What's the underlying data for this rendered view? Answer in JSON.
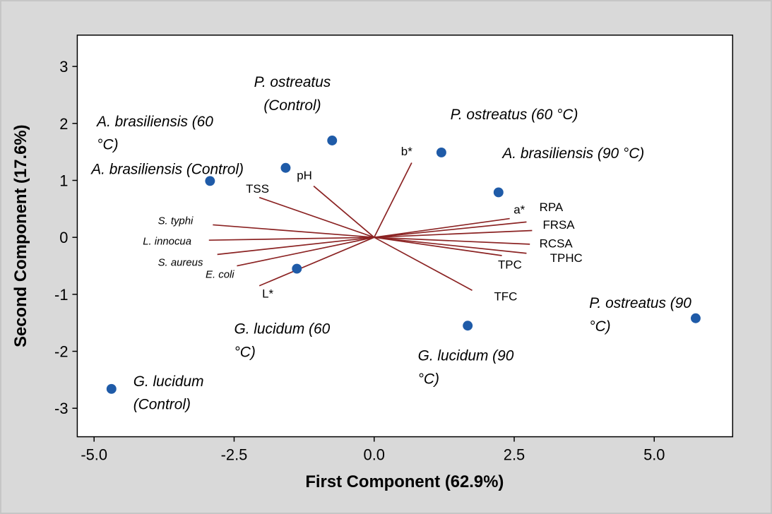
{
  "chart_data": {
    "type": "scatter",
    "variant": "pca_biplot",
    "title": "",
    "xlabel": "First Component (62.9%)",
    "ylabel": "Second Component (17.6%)",
    "xlim": [
      -5.3,
      6.4
    ],
    "ylim": [
      -3.5,
      3.55
    ],
    "grid": false,
    "legend": "none",
    "x_ticks": [
      {
        "value": -5,
        "label": "-5.0"
      },
      {
        "value": -2.5,
        "label": "-2.5"
      },
      {
        "value": 0,
        "label": "0.0"
      },
      {
        "value": 2.5,
        "label": "2.5"
      },
      {
        "value": 5,
        "label": "5.0"
      }
    ],
    "y_ticks": [
      {
        "value": -3,
        "label": "-3"
      },
      {
        "value": -2,
        "label": "-2"
      },
      {
        "value": -1,
        "label": "-1"
      },
      {
        "value": 0,
        "label": "0"
      },
      {
        "value": 1,
        "label": "1"
      },
      {
        "value": 2,
        "label": "2"
      },
      {
        "value": 3,
        "label": "3"
      }
    ],
    "colors": {
      "point": "#1f5ba8",
      "vector": "#8b2323",
      "plot_bg": "#ffffff",
      "page_bg": "#d9d9d9",
      "plot_border": "#000000",
      "text": "#000000"
    },
    "scores": [
      {
        "name": "P. ostreatus (Control)",
        "x": -0.75,
        "y": 1.7,
        "label_lines": [
          "P. ostreatus",
          "(Control)"
        ],
        "lx": -1.46,
        "ly": 2.64,
        "anchor": "middle"
      },
      {
        "name": "A. brasiliensis (60 °C)",
        "x": -1.58,
        "y": 1.22,
        "label_lines": [
          "A. brasiliensis (60",
          "°C)"
        ],
        "lx": -4.95,
        "ly": 1.95,
        "anchor": "start"
      },
      {
        "name": "A. brasiliensis (Control)",
        "x": -2.93,
        "y": 0.99,
        "label_lines": [
          "A. brasiliensis (Control)"
        ],
        "lx": -5.05,
        "ly": 1.11,
        "anchor": "start"
      },
      {
        "name": "P. ostreatus (60 °C)",
        "x": 1.2,
        "y": 1.49,
        "label_lines": [
          "P. ostreatus (60 °C)"
        ],
        "lx": 1.36,
        "ly": 2.07,
        "anchor": "start"
      },
      {
        "name": "A. brasiliensis (90 °C)",
        "x": 2.22,
        "y": 0.79,
        "label_lines": [
          "A. brasiliensis (90 °C)"
        ],
        "lx": 2.29,
        "ly": 1.39,
        "anchor": "start"
      },
      {
        "name": "G. lucidum (60 °C)",
        "x": -1.38,
        "y": -0.55,
        "label_lines": [
          "G. lucidum (60",
          "°C)"
        ],
        "lx": -2.5,
        "ly": -1.69,
        "anchor": "start"
      },
      {
        "name": "G. lucidum (90 °C)",
        "x": 1.67,
        "y": -1.55,
        "label_lines": [
          "G. lucidum (90",
          "°C)"
        ],
        "lx": 0.78,
        "ly": -2.16,
        "anchor": "start"
      },
      {
        "name": "P. ostreatus (90 °C)",
        "x": 5.74,
        "y": -1.42,
        "label_lines": [
          "P. ostreatus (90",
          "°C)"
        ],
        "lx": 3.84,
        "ly": -1.24,
        "anchor": "start"
      },
      {
        "name": "G. lucidum (Control)",
        "x": -4.69,
        "y": -2.66,
        "label_lines": [
          "G. lucidum",
          "(Control)"
        ],
        "lx": -4.3,
        "ly": -2.61,
        "anchor": "start"
      }
    ],
    "loadings": [
      {
        "name": "b*",
        "x": 0.67,
        "y": 1.31,
        "lx": 0.48,
        "ly": 1.44,
        "anchor": "start",
        "italic": false,
        "small": false
      },
      {
        "name": "pH",
        "x": -1.08,
        "y": 0.9,
        "lx": -1.38,
        "ly": 1.02,
        "anchor": "start",
        "italic": false,
        "small": false
      },
      {
        "name": "TSS",
        "x": -2.05,
        "y": 0.7,
        "lx": -2.29,
        "ly": 0.78,
        "anchor": "start",
        "italic": false,
        "small": false
      },
      {
        "name": "S. typhi",
        "x": -2.88,
        "y": 0.22,
        "lx": -3.86,
        "ly": 0.23,
        "anchor": "start",
        "italic": true,
        "small": true
      },
      {
        "name": "L. innocua",
        "x": -2.95,
        "y": -0.05,
        "lx": -4.13,
        "ly": -0.13,
        "anchor": "start",
        "italic": true,
        "small": true
      },
      {
        "name": "S. aureus",
        "x": -2.8,
        "y": -0.3,
        "lx": -3.86,
        "ly": -0.5,
        "anchor": "start",
        "italic": true,
        "small": true
      },
      {
        "name": "E. coli",
        "x": -2.45,
        "y": -0.5,
        "lx": -3.01,
        "ly": -0.71,
        "anchor": "start",
        "italic": true,
        "small": true
      },
      {
        "name": "L*",
        "x": -2.05,
        "y": -0.85,
        "lx": -2.0,
        "ly": -1.06,
        "anchor": "start",
        "italic": false,
        "small": false
      },
      {
        "name": "a*",
        "x": 2.42,
        "y": 0.33,
        "lx": 2.49,
        "ly": 0.42,
        "anchor": "start",
        "italic": false,
        "small": false
      },
      {
        "name": "RPA",
        "x": 2.72,
        "y": 0.27,
        "lx": 2.95,
        "ly": 0.46,
        "anchor": "start",
        "italic": false,
        "small": false
      },
      {
        "name": "FRSA",
        "x": 2.82,
        "y": 0.12,
        "lx": 3.01,
        "ly": 0.15,
        "anchor": "start",
        "italic": false,
        "small": false
      },
      {
        "name": "RCSA",
        "x": 2.78,
        "y": -0.12,
        "lx": 2.95,
        "ly": -0.18,
        "anchor": "start",
        "italic": false,
        "small": false
      },
      {
        "name": "TPHC",
        "x": 2.72,
        "y": -0.28,
        "lx": 3.14,
        "ly": -0.43,
        "anchor": "start",
        "italic": false,
        "small": false
      },
      {
        "name": "TPC",
        "x": 2.28,
        "y": -0.32,
        "lx": 2.21,
        "ly": -0.55,
        "anchor": "start",
        "italic": false,
        "small": false
      },
      {
        "name": "TFC",
        "x": 1.75,
        "y": -0.93,
        "lx": 2.14,
        "ly": -1.11,
        "anchor": "start",
        "italic": false,
        "small": false
      }
    ]
  }
}
